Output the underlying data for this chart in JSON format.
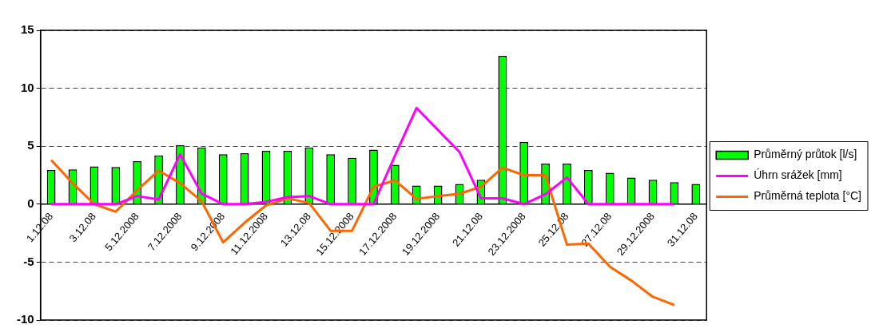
{
  "chart_data": {
    "type": "bar",
    "categories": [
      "1.12.08",
      null,
      "3.12.08",
      null,
      "5.12.2008",
      null,
      "7.12.2008",
      null,
      "9.12.2008",
      null,
      "11.12.2008",
      null,
      "13.12.08",
      null,
      "15.12.2008",
      null,
      "17.12.2008",
      null,
      "19.12.2008",
      null,
      "21.12.08",
      null,
      "23.12.2008",
      null,
      "25.12.08",
      null,
      "27.12.08",
      null,
      "29.12.2008",
      null,
      "31.12.08"
    ],
    "series": [
      {
        "name": "Průměrný průtok [l/s]",
        "color": "#00ff00",
        "values": [
          2.95,
          3.0,
          3.25,
          3.2,
          3.7,
          4.2,
          5.1,
          4.9,
          4.3,
          4.4,
          4.6,
          4.6,
          4.9,
          4.3,
          4.0,
          4.7,
          3.4,
          1.6,
          1.6,
          1.75,
          2.1,
          12.8,
          5.35,
          3.5,
          3.5,
          2.95,
          2.7,
          2.3,
          2.1,
          1.9,
          1.75
        ]
      },
      {
        "name": "Úhrn srážek [mm]",
        "type": "line",
        "color": "#ff00ff",
        "values": [
          0,
          0,
          0,
          0,
          0.7,
          0.4,
          4.3,
          0.9,
          0,
          0,
          0.2,
          0.6,
          0.7,
          0,
          0,
          0,
          4.2,
          8.3,
          6.4,
          4.5,
          0.5,
          0.5,
          0,
          0.85,
          2.3,
          0,
          0,
          0,
          0,
          0,
          null
        ]
      },
      {
        "name": "Průměrná teplota [°C]",
        "type": "line",
        "color": "#ff6600",
        "values": [
          3.8,
          1.8,
          0,
          -0.65,
          1.2,
          2.9,
          1.8,
          0.25,
          -3.3,
          -1.6,
          -0.1,
          0.5,
          0.1,
          -2.3,
          -2.3,
          1.5,
          2.05,
          0.45,
          0.7,
          0.9,
          1.5,
          3.15,
          2.5,
          2.5,
          -3.5,
          -3.4,
          -5.4,
          -6.6,
          -8.0,
          -8.7,
          null
        ]
      }
    ],
    "ylim": [
      -10,
      15
    ],
    "yticks": [
      -10,
      -5,
      0,
      5,
      10,
      15
    ],
    "grid": "y",
    "legend": "right",
    "marker": "none",
    "line_style": "solid"
  }
}
